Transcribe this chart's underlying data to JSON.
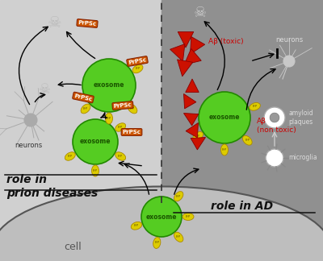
{
  "bg_left": "#d0d0d0",
  "bg_right": "#909090",
  "exosome_color": "#55cc22",
  "exosome_edge": "#228800",
  "prp_box_color": "#cc5500",
  "yellow_blob_color": "#ddcc00",
  "red_triangle_color": "#cc1100",
  "text_left_title": "role in\nprion diseases",
  "text_right_title": "role in AD",
  "text_cell": "cell",
  "text_neurons_left": "neurons",
  "text_neurons_right": "neurons",
  "text_ab_toxic": "Aβ (toxic)",
  "text_ab_nontoxic": "Aβ\n(non toxic)",
  "text_amyloid": "amyloid\nplaques",
  "text_microglia": "microglia"
}
